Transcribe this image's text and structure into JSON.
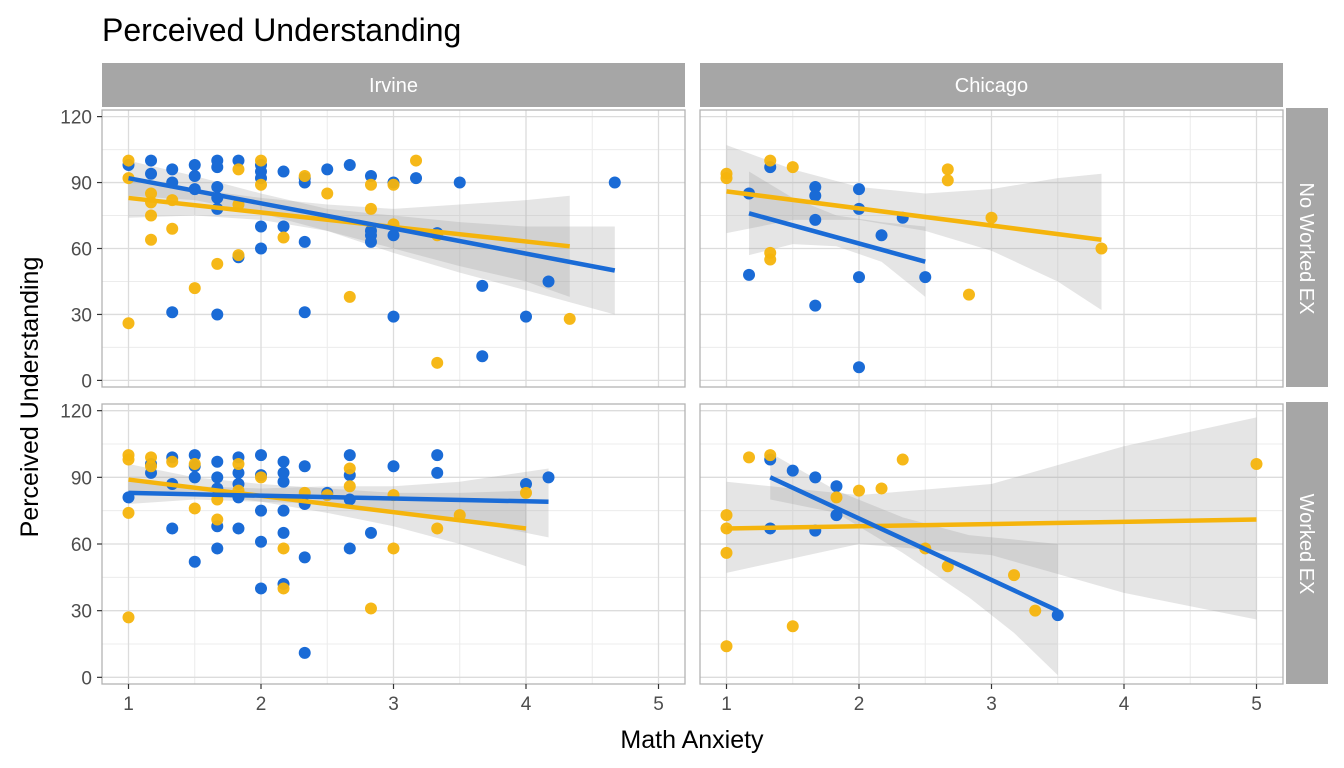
{
  "chart_data": {
    "type": "scatter",
    "title": "Perceived Understanding",
    "xlabel": "Math Anxiety",
    "ylabel": "Perceived Understanding",
    "xlim": [
      0.8,
      5.2
    ],
    "ylim": [
      -3,
      123
    ],
    "x_ticks": [
      1,
      2,
      3,
      4,
      5
    ],
    "y_ticks": [
      0,
      30,
      60,
      90,
      120
    ],
    "grid": true,
    "legend": "none",
    "colors": {
      "blue": "#1a6bd6",
      "gold": "#f5b40c",
      "strip": "#a6a6a6",
      "band": "#999999"
    },
    "col_labels": [
      "Irvine",
      "Chicago"
    ],
    "row_labels": [
      "No Worked EX",
      "Worked EX"
    ],
    "panels": [
      {
        "col": "Irvine",
        "row": "No Worked EX",
        "blue": [
          [
            1,
            98
          ],
          [
            1.17,
            100
          ],
          [
            1.17,
            94
          ],
          [
            1.33,
            96
          ],
          [
            1.33,
            90
          ],
          [
            1.5,
            98
          ],
          [
            1.5,
            93
          ],
          [
            1.5,
            87
          ],
          [
            1.67,
            100
          ],
          [
            1.67,
            97
          ],
          [
            1.67,
            88
          ],
          [
            1.67,
            83
          ],
          [
            1.67,
            78
          ],
          [
            1.83,
            100
          ],
          [
            1.83,
            56
          ],
          [
            2,
            98
          ],
          [
            2,
            95
          ],
          [
            2,
            92
          ],
          [
            2,
            70
          ],
          [
            2,
            60
          ],
          [
            2.17,
            95
          ],
          [
            2.17,
            70
          ],
          [
            2.33,
            92
          ],
          [
            2.33,
            90
          ],
          [
            2.33,
            63
          ],
          [
            2.33,
            31
          ],
          [
            2.5,
            96
          ],
          [
            2.67,
            98
          ],
          [
            2.83,
            93
          ],
          [
            2.83,
            68
          ],
          [
            2.83,
            66
          ],
          [
            2.83,
            63
          ],
          [
            3,
            90
          ],
          [
            3,
            66
          ],
          [
            3,
            29
          ],
          [
            3.17,
            92
          ],
          [
            3.33,
            67
          ],
          [
            3.5,
            90
          ],
          [
            3.67,
            43
          ],
          [
            3.67,
            11
          ],
          [
            4,
            29
          ],
          [
            4.17,
            45
          ],
          [
            4.67,
            90
          ],
          [
            1.33,
            31
          ],
          [
            1.67,
            30
          ]
        ],
        "gold": [
          [
            1,
            100
          ],
          [
            1,
            92
          ],
          [
            1,
            26
          ],
          [
            1.17,
            85
          ],
          [
            1.17,
            81
          ],
          [
            1.17,
            75
          ],
          [
            1.17,
            64
          ],
          [
            1.33,
            69
          ],
          [
            1.33,
            82
          ],
          [
            1.5,
            42
          ],
          [
            1.67,
            53
          ],
          [
            1.83,
            96
          ],
          [
            1.83,
            80
          ],
          [
            1.83,
            57
          ],
          [
            2,
            100
          ],
          [
            2,
            89
          ],
          [
            2.17,
            65
          ],
          [
            2.33,
            93
          ],
          [
            2.5,
            85
          ],
          [
            2.67,
            38
          ],
          [
            2.83,
            89
          ],
          [
            2.83,
            78
          ],
          [
            3,
            89
          ],
          [
            3,
            71
          ],
          [
            3.17,
            100
          ],
          [
            3.33,
            8
          ],
          [
            3.33,
            66
          ],
          [
            4.33,
            28
          ]
        ],
        "blue_fit": {
          "x": [
            1,
            4.67
          ],
          "y": [
            92,
            50
          ]
        },
        "blue_ci": {
          "x": [
            1,
            1.5,
            2,
            2.5,
            3,
            3.5,
            4,
            4.67
          ],
          "lower": [
            84,
            82,
            76,
            68,
            58,
            49,
            41,
            30
          ],
          "upper": [
            100,
            93,
            85,
            78,
            75,
            72,
            70,
            70
          ]
        },
        "gold_fit": {
          "x": [
            1,
            4.33
          ],
          "y": [
            83,
            61
          ]
        },
        "gold_ci": {
          "x": [
            1,
            1.5,
            2,
            2.5,
            3,
            3.5,
            4,
            4.33
          ],
          "lower": [
            74,
            75,
            73,
            68,
            60,
            52,
            45,
            38
          ],
          "upper": [
            92,
            87,
            83,
            80,
            78,
            80,
            82,
            84
          ]
        }
      },
      {
        "col": "Chicago",
        "row": "No Worked EX",
        "blue": [
          [
            1.17,
            48
          ],
          [
            1.17,
            85
          ],
          [
            1.33,
            97
          ],
          [
            1.67,
            88
          ],
          [
            1.67,
            84
          ],
          [
            1.67,
            73
          ],
          [
            1.67,
            34
          ],
          [
            2,
            87
          ],
          [
            2,
            78
          ],
          [
            2,
            47
          ],
          [
            2,
            6
          ],
          [
            2.17,
            66
          ],
          [
            2.33,
            74
          ],
          [
            2.5,
            47
          ]
        ],
        "gold": [
          [
            1,
            94
          ],
          [
            1,
            92
          ],
          [
            1.33,
            100
          ],
          [
            1.33,
            58
          ],
          [
            1.33,
            55
          ],
          [
            1.5,
            97
          ],
          [
            2.67,
            96
          ],
          [
            2.67,
            91
          ],
          [
            3,
            74
          ],
          [
            2.83,
            39
          ],
          [
            3.83,
            60
          ]
        ],
        "blue_fit": {
          "x": [
            1.17,
            2.5
          ],
          "y": [
            76,
            54
          ]
        },
        "blue_ci": {
          "x": [
            1.17,
            1.5,
            1.83,
            2.17,
            2.5
          ],
          "lower": [
            57,
            62,
            61,
            54,
            38
          ],
          "upper": [
            95,
            83,
            75,
            72,
            70
          ]
        },
        "gold_fit": {
          "x": [
            1,
            3.83
          ],
          "y": [
            86,
            64
          ]
        },
        "gold_ci": {
          "x": [
            1,
            1.5,
            2,
            2.5,
            3,
            3.5,
            3.83
          ],
          "lower": [
            67,
            73,
            73,
            68,
            59,
            45,
            32
          ],
          "upper": [
            107,
            96,
            88,
            85,
            87,
            92,
            94
          ]
        }
      },
      {
        "col": "Irvine",
        "row": "Worked EX",
        "blue": [
          [
            1,
            81
          ],
          [
            1.17,
            96
          ],
          [
            1.17,
            92
          ],
          [
            1.33,
            99
          ],
          [
            1.33,
            87
          ],
          [
            1.33,
            67
          ],
          [
            1.5,
            100
          ],
          [
            1.5,
            95
          ],
          [
            1.5,
            90
          ],
          [
            1.5,
            52
          ],
          [
            1.67,
            97
          ],
          [
            1.67,
            90
          ],
          [
            1.67,
            85
          ],
          [
            1.67,
            68
          ],
          [
            1.67,
            58
          ],
          [
            1.83,
            99
          ],
          [
            1.83,
            92
          ],
          [
            1.83,
            87
          ],
          [
            1.83,
            81
          ],
          [
            1.83,
            67
          ],
          [
            2,
            100
          ],
          [
            2,
            91
          ],
          [
            2,
            75
          ],
          [
            2,
            61
          ],
          [
            2,
            40
          ],
          [
            2.17,
            97
          ],
          [
            2.17,
            92
          ],
          [
            2.17,
            88
          ],
          [
            2.17,
            75
          ],
          [
            2.17,
            65
          ],
          [
            2.17,
            42
          ],
          [
            2.33,
            95
          ],
          [
            2.33,
            78
          ],
          [
            2.33,
            54
          ],
          [
            2.33,
            11
          ],
          [
            2.5,
            83
          ],
          [
            2.67,
            100
          ],
          [
            2.67,
            91
          ],
          [
            2.67,
            80
          ],
          [
            2.67,
            58
          ],
          [
            2.83,
            65
          ],
          [
            3,
            95
          ],
          [
            3.33,
            100
          ],
          [
            3.33,
            92
          ],
          [
            4,
            87
          ],
          [
            4.17,
            90
          ]
        ],
        "gold": [
          [
            1,
            100
          ],
          [
            1,
            98
          ],
          [
            1,
            74
          ],
          [
            1,
            27
          ],
          [
            1.17,
            99
          ],
          [
            1.17,
            95
          ],
          [
            1.33,
            97
          ],
          [
            1.5,
            96
          ],
          [
            1.5,
            76
          ],
          [
            1.67,
            80
          ],
          [
            1.67,
            71
          ],
          [
            1.83,
            96
          ],
          [
            1.83,
            84
          ],
          [
            2,
            90
          ],
          [
            2.17,
            58
          ],
          [
            2.17,
            40
          ],
          [
            2.33,
            83
          ],
          [
            2.5,
            82
          ],
          [
            2.67,
            94
          ],
          [
            2.67,
            86
          ],
          [
            2.83,
            31
          ],
          [
            3,
            82
          ],
          [
            3,
            58
          ],
          [
            3.33,
            67
          ],
          [
            3.5,
            73
          ],
          [
            4,
            83
          ]
        ],
        "blue_fit": {
          "x": [
            1,
            4.17
          ],
          "y": [
            83,
            79
          ]
        },
        "blue_ci": {
          "x": [
            1,
            1.5,
            2,
            2.5,
            3,
            3.5,
            4.17
          ],
          "lower": [
            78,
            80,
            79,
            78,
            75,
            71,
            63
          ],
          "upper": [
            88,
            86,
            85,
            86,
            86,
            88,
            94
          ]
        },
        "gold_fit": {
          "x": [
            1,
            4
          ],
          "y": [
            89,
            67
          ]
        },
        "gold_ci": {
          "x": [
            1,
            1.5,
            2,
            2.5,
            3,
            3.5,
            4
          ],
          "lower": [
            83,
            83,
            79,
            74,
            68,
            60,
            50
          ],
          "upper": [
            96,
            90,
            87,
            85,
            83,
            83,
            84
          ]
        }
      },
      {
        "col": "Chicago",
        "row": "Worked EX",
        "blue": [
          [
            1.33,
            98
          ],
          [
            1.33,
            67
          ],
          [
            1.5,
            93
          ],
          [
            1.67,
            90
          ],
          [
            1.67,
            66
          ],
          [
            1.83,
            86
          ],
          [
            1.83,
            73
          ],
          [
            3.5,
            28
          ]
        ],
        "gold": [
          [
            1,
            73
          ],
          [
            1,
            67
          ],
          [
            1,
            56
          ],
          [
            1,
            14
          ],
          [
            1.17,
            99
          ],
          [
            1.33,
            100
          ],
          [
            1.5,
            23
          ],
          [
            1.83,
            81
          ],
          [
            2,
            84
          ],
          [
            2.17,
            85
          ],
          [
            2.33,
            98
          ],
          [
            2.5,
            58
          ],
          [
            2.67,
            50
          ],
          [
            3.17,
            46
          ],
          [
            3.33,
            30
          ],
          [
            5,
            96
          ]
        ],
        "blue_fit": {
          "x": [
            1.33,
            3.5
          ],
          "y": [
            90,
            30
          ]
        },
        "blue_ci": {
          "x": [
            1.33,
            1.83,
            2.33,
            2.83,
            3.17,
            3.5
          ],
          "lower": [
            80,
            74,
            56,
            36,
            20,
            1
          ],
          "upper": [
            101,
            84,
            72,
            64,
            62,
            60
          ]
        },
        "gold_fit": {
          "x": [
            1,
            5
          ],
          "y": [
            67,
            71
          ]
        },
        "gold_ci": {
          "x": [
            1,
            2,
            3,
            4,
            5
          ],
          "lower": [
            47,
            60,
            55,
            38,
            26
          ],
          "upper": [
            88,
            82,
            87,
            104,
            117
          ]
        }
      }
    ]
  }
}
